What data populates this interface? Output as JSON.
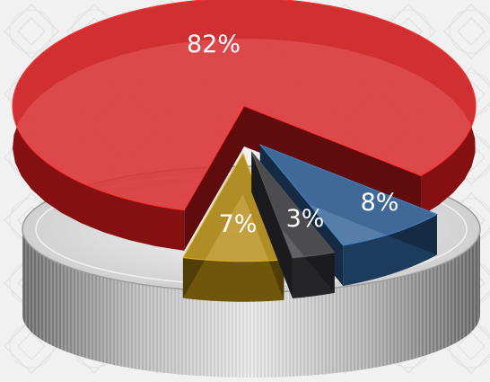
{
  "chart_data": {
    "type": "pie",
    "style": "3d-exploded",
    "slices": [
      {
        "label": "82%",
        "value": 82,
        "color": "#d61a1c"
      },
      {
        "label": "7%",
        "value": 7,
        "color": "#b58a10"
      },
      {
        "label": "3%",
        "value": 3,
        "color": "#3c3c40"
      },
      {
        "label": "8%",
        "value": 8,
        "color": "#2f5f96"
      }
    ],
    "legend": "none"
  }
}
